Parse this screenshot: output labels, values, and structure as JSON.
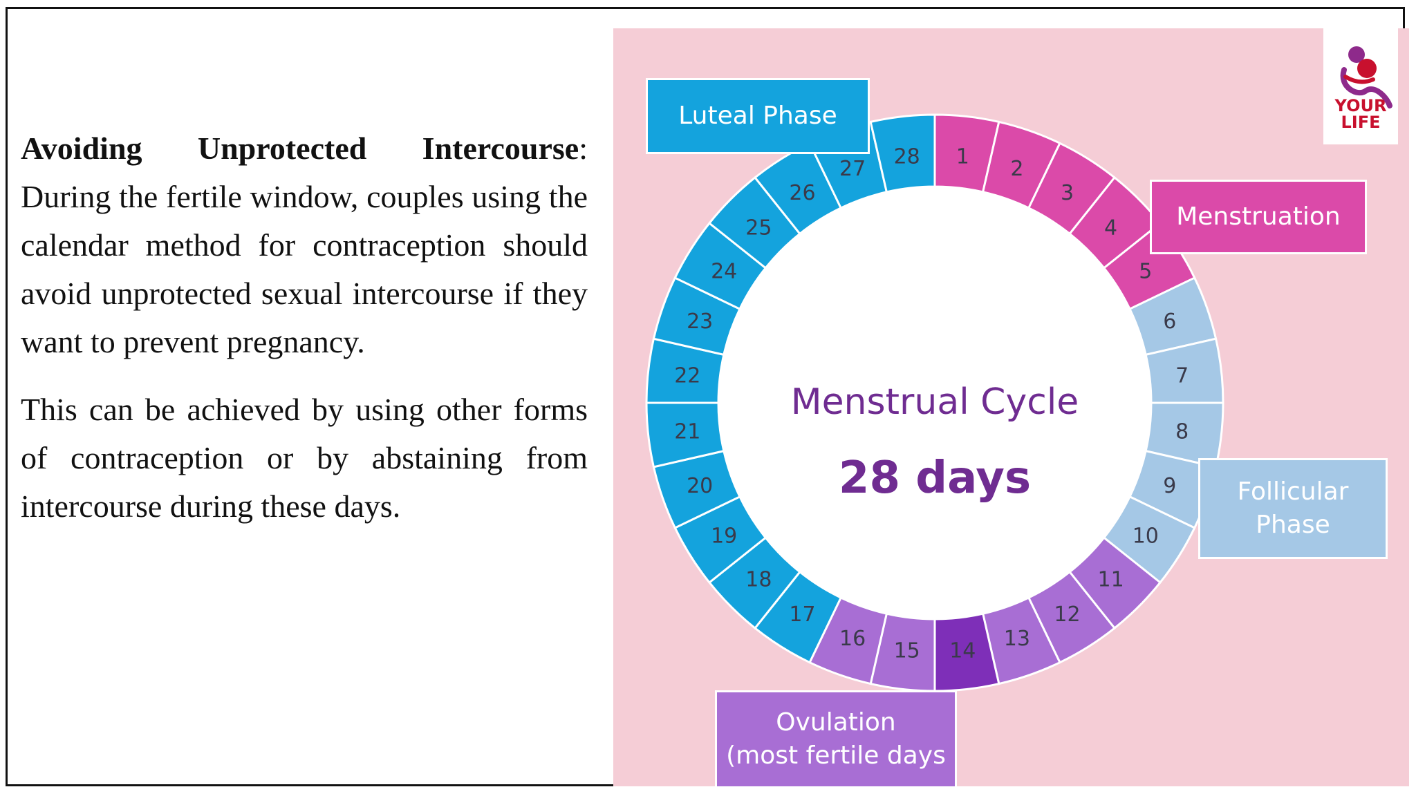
{
  "text": {
    "heading": "Avoiding Unprotected Intercourse",
    "heading_suffix": ":",
    "para1": " During the fertile window, couples using the calendar method for contraception should avoid unprotected sexual intercourse if they want to prevent pregnancy.",
    "para2": "This can be achieved by using other forms of contraception or by abstaining from intercourse during these days."
  },
  "cycle": {
    "title": "Menstrual Cycle",
    "duration": "28 days",
    "days": [
      "1",
      "2",
      "3",
      "4",
      "5",
      "6",
      "7",
      "8",
      "9",
      "10",
      "11",
      "12",
      "13",
      "14",
      "15",
      "16",
      "17",
      "18",
      "19",
      "20",
      "21",
      "22",
      "23",
      "24",
      "25",
      "26",
      "27",
      "28"
    ],
    "day_phase": [
      "m",
      "m",
      "m",
      "m",
      "m",
      "f",
      "f",
      "f",
      "f",
      "f",
      "o",
      "o",
      "o",
      "p",
      "o",
      "o",
      "l",
      "l",
      "l",
      "l",
      "l",
      "l",
      "l",
      "l",
      "l",
      "l",
      "l",
      "l"
    ],
    "phase_colors": {
      "m": "#db4aa9",
      "f": "#a5c8e6",
      "o": "#a86ed4",
      "p": "#7e2fb8",
      "l": "#14a3dd"
    },
    "labels": {
      "luteal": "Luteal Phase",
      "menstruation": "Menstruation",
      "follicular_1": "Follicular",
      "follicular_2": "Phase",
      "ovulation_1": "Ovulation",
      "ovulation_2": "(most fertile days"
    },
    "title_color": "#6f2c91"
  },
  "logo": {
    "line1": "YOUR",
    "line2": "LIFE",
    "color": "#c8102e",
    "accent": "#8e2a8b"
  }
}
